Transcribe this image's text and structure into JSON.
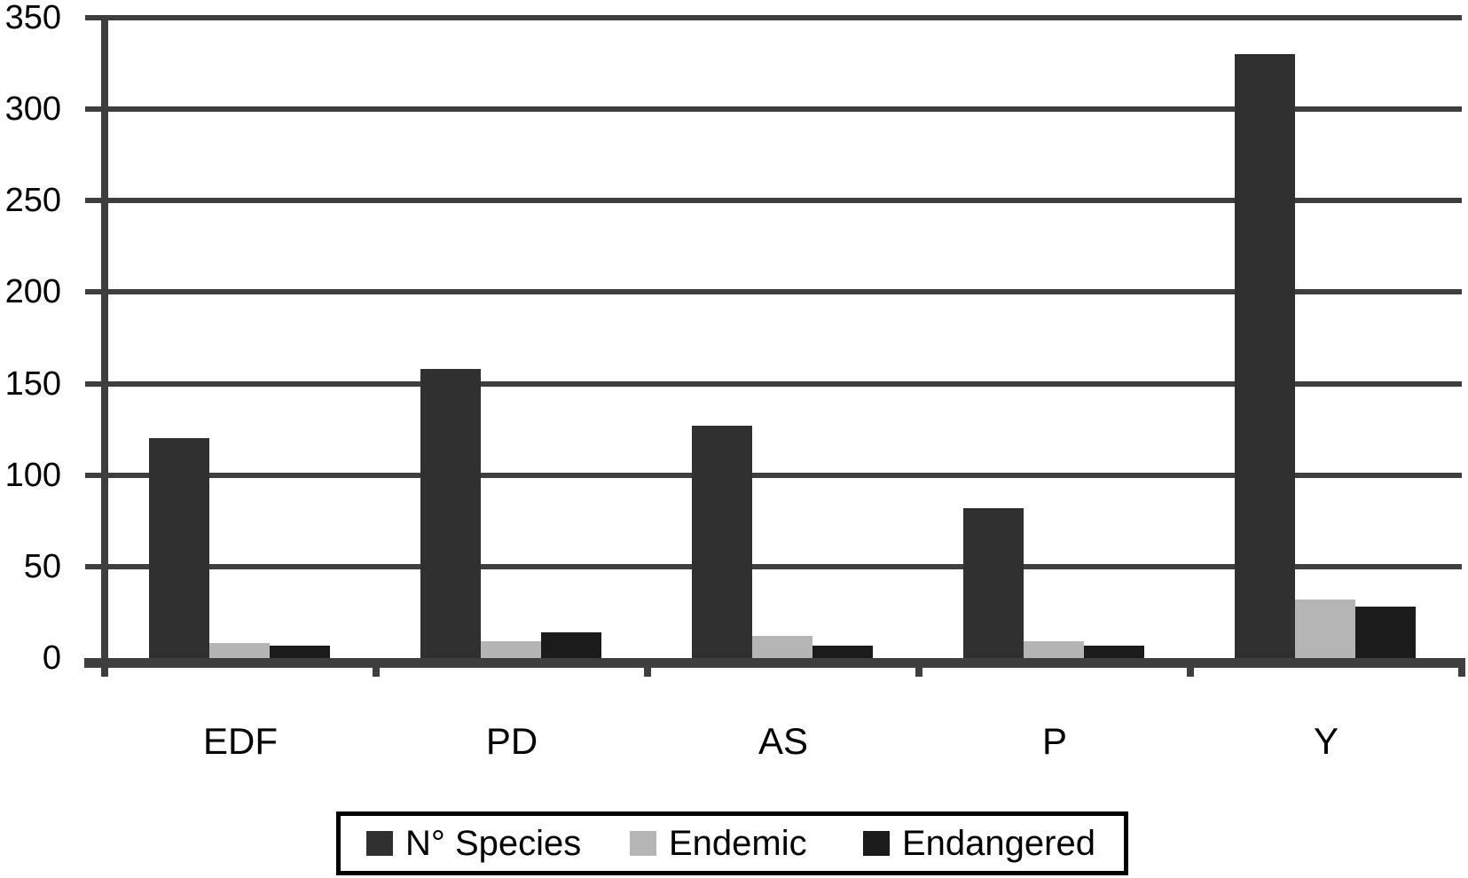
{
  "chart_data": {
    "type": "bar",
    "title": "",
    "xlabel": "",
    "ylabel": "",
    "categories": [
      "EDF",
      "PD",
      "AS",
      "P",
      "Y"
    ],
    "series": [
      {
        "name": "N° Species",
        "color": "#303030",
        "values": [
          120,
          158,
          127,
          82,
          330
        ]
      },
      {
        "name": "Endemic",
        "color": "#b5b5b5",
        "values": [
          8,
          9,
          12,
          9,
          32
        ]
      },
      {
        "name": "Endangered",
        "color": "#1b1b1b",
        "values": [
          7,
          14,
          7,
          7,
          28
        ]
      }
    ],
    "ylim": [
      0,
      350
    ],
    "ytick_step": 50,
    "ytick_labels": [
      "0",
      "50",
      "100",
      "150",
      "200",
      "250",
      "300",
      "350"
    ],
    "grid": "horizontal",
    "legend_position": "bottom",
    "colors": {
      "axis": "#3e3e3e",
      "background": "#ffffff",
      "text": "#000000",
      "legend_border": "#000000"
    }
  }
}
